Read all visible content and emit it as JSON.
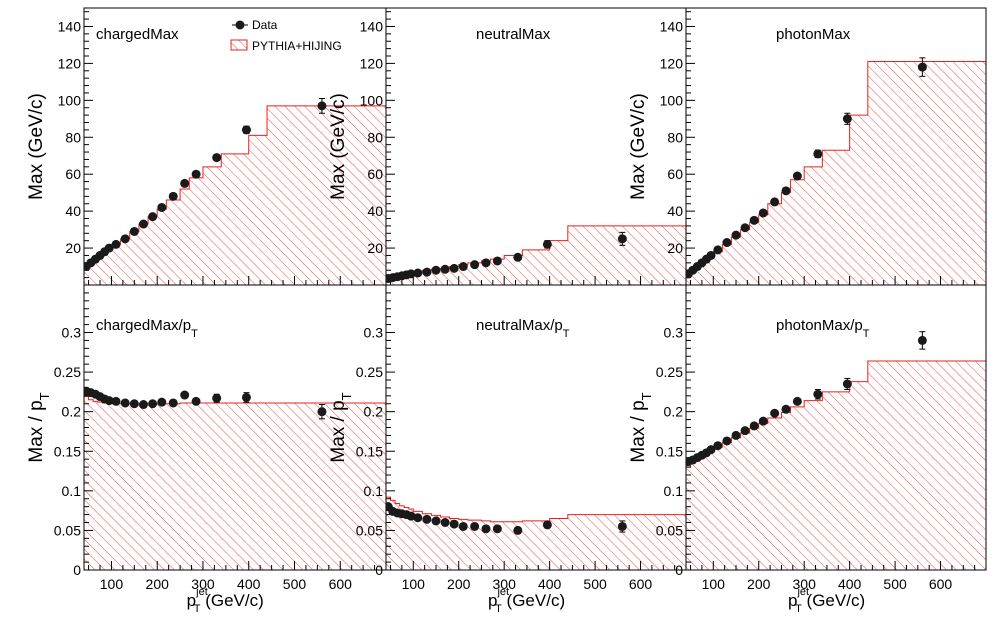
{
  "legend": {
    "data_label": "Data",
    "mc_label": "PYTHIA+HIJING",
    "data_color": "#000000",
    "mc_color": "#e8211c"
  },
  "chart_data": [
    {
      "type": "line",
      "title": "chargedMax",
      "xlabel": "",
      "ylabel": "Max (GeV/c)",
      "xlim": [
        40,
        700
      ],
      "ylim": [
        0,
        150
      ],
      "xticks": [],
      "yticks": [
        20,
        40,
        60,
        80,
        100,
        120,
        140
      ],
      "series": [
        {
          "name": "Data",
          "x": [
            45,
            55,
            65,
            75,
            85,
            95,
            110,
            130,
            150,
            170,
            190,
            210,
            235,
            260,
            285,
            330,
            395,
            560
          ],
          "y": [
            10,
            12,
            14,
            16,
            18,
            20,
            22,
            25,
            29,
            33,
            37,
            42,
            48,
            55,
            60,
            69,
            84,
            97
          ],
          "err": [
            0.6,
            0.6,
            0.6,
            0.6,
            0.6,
            0.7,
            0.7,
            0.8,
            0.8,
            0.9,
            0.9,
            1,
            1,
            1.2,
            1.3,
            1.5,
            2,
            4
          ]
        },
        {
          "name": "PYTHIA+HIJING",
          "edges": [
            40,
            50,
            60,
            70,
            80,
            90,
            100,
            120,
            140,
            160,
            180,
            200,
            220,
            250,
            270,
            300,
            340,
            400,
            440,
            700
          ],
          "y": [
            10,
            11.5,
            13.5,
            15.5,
            17.5,
            19.5,
            22,
            25,
            29,
            33,
            37,
            41,
            46,
            52,
            58,
            64,
            71,
            81,
            97
          ]
        }
      ]
    },
    {
      "type": "line",
      "title": "neutralMax",
      "xlabel": "",
      "ylabel": "Max (GeV/c)",
      "xlim": [
        40,
        700
      ],
      "ylim": [
        0,
        150
      ],
      "xticks": [],
      "yticks": [
        20,
        40,
        60,
        80,
        100,
        120,
        140
      ],
      "series": [
        {
          "name": "Data",
          "x": [
            45,
            55,
            65,
            75,
            85,
            95,
            110,
            130,
            150,
            170,
            190,
            210,
            235,
            260,
            285,
            330,
            395,
            560
          ],
          "y": [
            3.5,
            4,
            4.5,
            5,
            5.5,
            6,
            6.5,
            7,
            8,
            8.5,
            9,
            10,
            11,
            12,
            13,
            15,
            22,
            25
          ],
          "err": [
            0.3,
            0.3,
            0.3,
            0.3,
            0.3,
            0.3,
            0.4,
            0.4,
            0.4,
            0.5,
            0.5,
            0.6,
            0.7,
            0.8,
            1,
            1.5,
            2,
            3.5
          ]
        },
        {
          "name": "PYTHIA+HIJING",
          "edges": [
            40,
            50,
            60,
            70,
            80,
            90,
            100,
            120,
            140,
            160,
            180,
            200,
            220,
            250,
            270,
            300,
            340,
            400,
            440,
            700
          ],
          "y": [
            4,
            4.5,
            5,
            5.5,
            6,
            6.5,
            7,
            8,
            8.5,
            9,
            10,
            11,
            12,
            13,
            14,
            16,
            19,
            24,
            32
          ]
        }
      ]
    },
    {
      "type": "line",
      "title": "photonMax",
      "xlabel": "",
      "ylabel": "Max (GeV/c)",
      "xlim": [
        40,
        700
      ],
      "ylim": [
        0,
        150
      ],
      "xticks": [],
      "yticks": [
        20,
        40,
        60,
        80,
        100,
        120,
        140
      ],
      "series": [
        {
          "name": "Data",
          "x": [
            45,
            55,
            65,
            75,
            85,
            95,
            110,
            130,
            150,
            170,
            190,
            210,
            235,
            260,
            285,
            330,
            395,
            560
          ],
          "y": [
            6,
            8,
            10,
            12,
            14,
            16,
            19,
            23,
            27,
            31,
            35,
            39,
            45,
            51,
            59,
            71,
            90,
            118
          ],
          "err": [
            0.5,
            0.5,
            0.5,
            0.5,
            0.5,
            0.6,
            0.6,
            0.7,
            0.8,
            0.9,
            1,
            1,
            1.2,
            1.4,
            1.6,
            2,
            3,
            5
          ]
        },
        {
          "name": "PYTHIA+HIJING",
          "edges": [
            40,
            50,
            60,
            70,
            80,
            90,
            100,
            120,
            140,
            160,
            180,
            200,
            220,
            250,
            270,
            300,
            340,
            400,
            440,
            700
          ],
          "y": [
            6,
            7.5,
            9.5,
            11.5,
            13.5,
            15.5,
            18,
            22,
            26,
            30,
            34,
            38,
            44,
            50,
            57,
            64,
            73,
            92,
            121
          ]
        }
      ]
    },
    {
      "type": "line",
      "title": "chargedMax/p",
      "title_sub": "T",
      "xlabel": "p",
      "xlabel_sup": "jet",
      "xlabel_sub": "T",
      "xlabel_rest": " (GeV/c)",
      "ylabel": "Max / p",
      "ylabel_sub": "T",
      "xlim": [
        40,
        700
      ],
      "ylim": [
        0,
        0.36
      ],
      "xticks": [
        100,
        200,
        300,
        400,
        500,
        600
      ],
      "yticks": [
        0,
        0.05,
        0.1,
        0.15,
        0.2,
        0.25,
        0.3
      ],
      "series": [
        {
          "name": "Data",
          "x": [
            45,
            55,
            65,
            75,
            85,
            95,
            110,
            130,
            150,
            170,
            190,
            210,
            235,
            260,
            285,
            330,
            395,
            560
          ],
          "y": [
            0.226,
            0.224,
            0.222,
            0.219,
            0.216,
            0.214,
            0.213,
            0.211,
            0.21,
            0.209,
            0.21,
            0.212,
            0.211,
            0.221,
            0.213,
            0.217,
            0.218,
            0.2
          ],
          "err": [
            0.004,
            0.004,
            0.004,
            0.004,
            0.004,
            0.004,
            0.004,
            0.004,
            0.004,
            0.004,
            0.004,
            0.004,
            0.004,
            0.005,
            0.005,
            0.005,
            0.006,
            0.009
          ]
        },
        {
          "name": "PYTHIA+HIJING",
          "edges": [
            40,
            50,
            60,
            70,
            80,
            90,
            100,
            120,
            140,
            160,
            180,
            200,
            220,
            250,
            270,
            300,
            340,
            400,
            440,
            700
          ],
          "y": [
            0.219,
            0.215,
            0.213,
            0.212,
            0.211,
            0.21,
            0.21,
            0.21,
            0.21,
            0.21,
            0.21,
            0.21,
            0.21,
            0.211,
            0.211,
            0.211,
            0.211,
            0.211,
            0.211
          ]
        }
      ]
    },
    {
      "type": "line",
      "title": "neutralMax/p",
      "title_sub": "T",
      "xlabel": "p",
      "xlabel_sup": "jet",
      "xlabel_sub": "T",
      "xlabel_rest": " (GeV/c)",
      "ylabel": "Max / p",
      "ylabel_sub": "T",
      "xlim": [
        40,
        700
      ],
      "ylim": [
        0,
        0.36
      ],
      "xticks": [
        100,
        200,
        300,
        400,
        500,
        600
      ],
      "yticks": [
        0,
        0.05,
        0.1,
        0.15,
        0.2,
        0.25,
        0.3
      ],
      "series": [
        {
          "name": "Data",
          "x": [
            45,
            55,
            65,
            75,
            85,
            95,
            110,
            130,
            150,
            170,
            190,
            210,
            235,
            260,
            285,
            330,
            395,
            560
          ],
          "y": [
            0.08,
            0.074,
            0.072,
            0.071,
            0.07,
            0.068,
            0.066,
            0.064,
            0.062,
            0.06,
            0.058,
            0.055,
            0.055,
            0.052,
            0.052,
            0.05,
            0.057,
            0.055
          ],
          "err": [
            0.003,
            0.003,
            0.003,
            0.003,
            0.003,
            0.003,
            0.003,
            0.003,
            0.003,
            0.003,
            0.003,
            0.003,
            0.003,
            0.003,
            0.003,
            0.003,
            0.004,
            0.007
          ]
        },
        {
          "name": "PYTHIA+HIJING",
          "edges": [
            40,
            50,
            60,
            70,
            80,
            90,
            100,
            120,
            140,
            160,
            180,
            200,
            220,
            250,
            270,
            300,
            340,
            400,
            440,
            700
          ],
          "y": [
            0.092,
            0.088,
            0.084,
            0.081,
            0.079,
            0.077,
            0.074,
            0.071,
            0.069,
            0.067,
            0.065,
            0.064,
            0.063,
            0.062,
            0.061,
            0.061,
            0.062,
            0.065,
            0.07
          ]
        }
      ]
    },
    {
      "type": "line",
      "title": "photonMax/p",
      "title_sub": "T",
      "xlabel": "p",
      "xlabel_sup": "jet",
      "xlabel_sub": "T",
      "xlabel_rest": " (GeV/c)",
      "ylabel": "Max / p",
      "ylabel_sub": "T",
      "xlim": [
        40,
        700
      ],
      "ylim": [
        0,
        0.36
      ],
      "xticks": [
        100,
        200,
        300,
        400,
        500,
        600
      ],
      "yticks": [
        0,
        0.05,
        0.1,
        0.15,
        0.2,
        0.25,
        0.3
      ],
      "series": [
        {
          "name": "Data",
          "x": [
            45,
            55,
            65,
            75,
            85,
            95,
            110,
            130,
            150,
            170,
            190,
            210,
            235,
            260,
            285,
            330,
            395,
            560
          ],
          "y": [
            0.137,
            0.139,
            0.142,
            0.145,
            0.148,
            0.152,
            0.157,
            0.163,
            0.17,
            0.176,
            0.182,
            0.188,
            0.198,
            0.203,
            0.213,
            0.222,
            0.235,
            0.29
          ],
          "err": [
            0.004,
            0.004,
            0.004,
            0.004,
            0.004,
            0.004,
            0.004,
            0.004,
            0.004,
            0.004,
            0.004,
            0.004,
            0.005,
            0.005,
            0.005,
            0.006,
            0.007,
            0.011
          ]
        },
        {
          "name": "PYTHIA+HIJING",
          "edges": [
            40,
            50,
            60,
            70,
            80,
            90,
            100,
            120,
            140,
            160,
            180,
            200,
            220,
            250,
            270,
            300,
            340,
            400,
            440,
            700
          ],
          "y": [
            0.13,
            0.135,
            0.139,
            0.143,
            0.147,
            0.151,
            0.155,
            0.161,
            0.167,
            0.173,
            0.179,
            0.185,
            0.192,
            0.199,
            0.206,
            0.214,
            0.225,
            0.238,
            0.264
          ]
        }
      ]
    }
  ]
}
